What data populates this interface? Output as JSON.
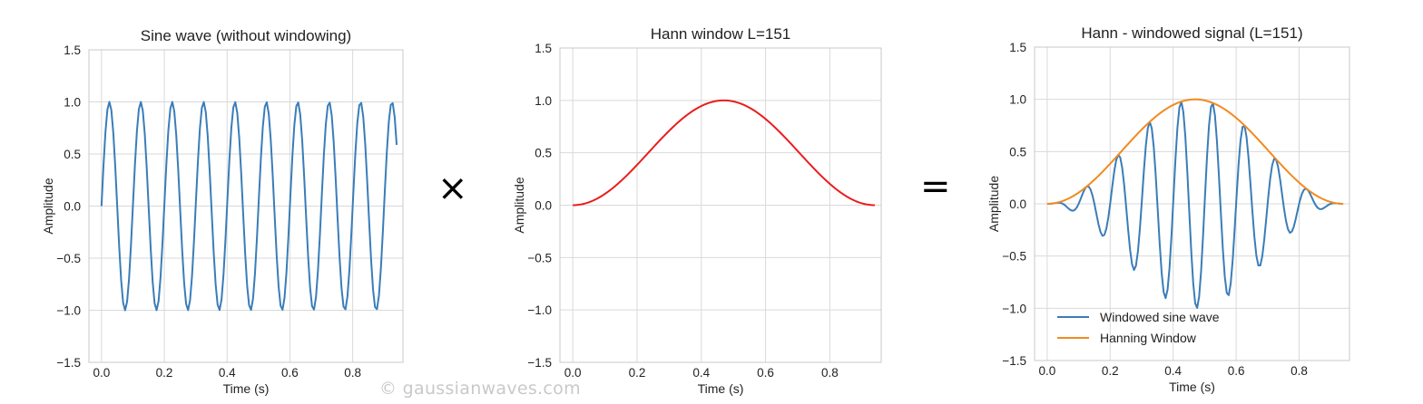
{
  "operators": {
    "times": "×",
    "equals": "="
  },
  "watermark": "© gaussianwaves.com",
  "colors": {
    "sine": "#3a7db8",
    "hann": "#ea1c1c",
    "window_orange": "#f28a1e",
    "grid": "#d9d9d9",
    "axis": "#c8c8c8"
  },
  "chart_data": [
    {
      "type": "line",
      "title": "Sine wave (without windowing)",
      "xlabel": "Time (s)",
      "ylabel": "Amplitude",
      "xlim": [
        -0.04,
        0.96
      ],
      "ylim": [
        -1.5,
        1.5
      ],
      "xticks": [
        0.0,
        0.2,
        0.4,
        0.6,
        0.8
      ],
      "xtick_labels": [
        "0.0",
        "0.2",
        "0.4",
        "0.6",
        "0.8"
      ],
      "yticks": [
        1.5,
        1.0,
        0.5,
        0.0,
        -0.5,
        -1.0,
        -1.5
      ],
      "ytick_labels": [
        "1.5",
        "1.0",
        "0.5",
        "0.0",
        "−0.5",
        "−1.0",
        "−1.5"
      ],
      "grid": true,
      "series": [
        {
          "color": "#3a7db8",
          "function": "sin(2*pi*f*t)",
          "frequency": 10,
          "t_start": 0.0,
          "t_end": 0.94,
          "samples": 151
        }
      ]
    },
    {
      "type": "line",
      "title": "Hann window L=151",
      "xlabel": "Time (s)",
      "ylabel": "Amplitude",
      "xlim": [
        -0.04,
        0.96
      ],
      "ylim": [
        -1.5,
        1.5
      ],
      "xticks": [
        0.0,
        0.2,
        0.4,
        0.6,
        0.8
      ],
      "xtick_labels": [
        "0.0",
        "0.2",
        "0.4",
        "0.6",
        "0.8"
      ],
      "yticks": [
        1.5,
        1.0,
        0.5,
        0.0,
        -0.5,
        -1.0,
        -1.5
      ],
      "ytick_labels": [
        "1.5",
        "1.0",
        "0.5",
        "0.0",
        "−0.5",
        "−1.0",
        "−1.5"
      ],
      "grid": true,
      "series": [
        {
          "color": "#ea1c1c",
          "function": "hann",
          "t_start": 0.0,
          "t_end": 0.94,
          "samples": 151
        }
      ]
    },
    {
      "type": "line",
      "title": "Hann - windowed signal (L=151)",
      "xlabel": "Time (s)",
      "ylabel": "Amplitude",
      "xlim": [
        -0.04,
        0.96
      ],
      "ylim": [
        -1.5,
        1.5
      ],
      "xticks": [
        0.0,
        0.2,
        0.4,
        0.6,
        0.8
      ],
      "xtick_labels": [
        "0.0",
        "0.2",
        "0.4",
        "0.6",
        "0.8"
      ],
      "yticks": [
        1.5,
        1.0,
        0.5,
        0.0,
        -0.5,
        -1.0,
        -1.5
      ],
      "ytick_labels": [
        "1.5",
        "1.0",
        "0.5",
        "0.0",
        "−0.5",
        "−1.0",
        "−1.5"
      ],
      "grid": true,
      "legend_position": "lower-left",
      "series": [
        {
          "name": "Windowed sine wave",
          "color": "#3a7db8",
          "function": "hann*sin(2*pi*f*t)",
          "frequency": 10,
          "t_start": 0.0,
          "t_end": 0.94,
          "samples": 151
        },
        {
          "name": "Hanning Window",
          "color": "#f28a1e",
          "function": "hann",
          "t_start": 0.0,
          "t_end": 0.94,
          "samples": 151
        }
      ]
    }
  ]
}
